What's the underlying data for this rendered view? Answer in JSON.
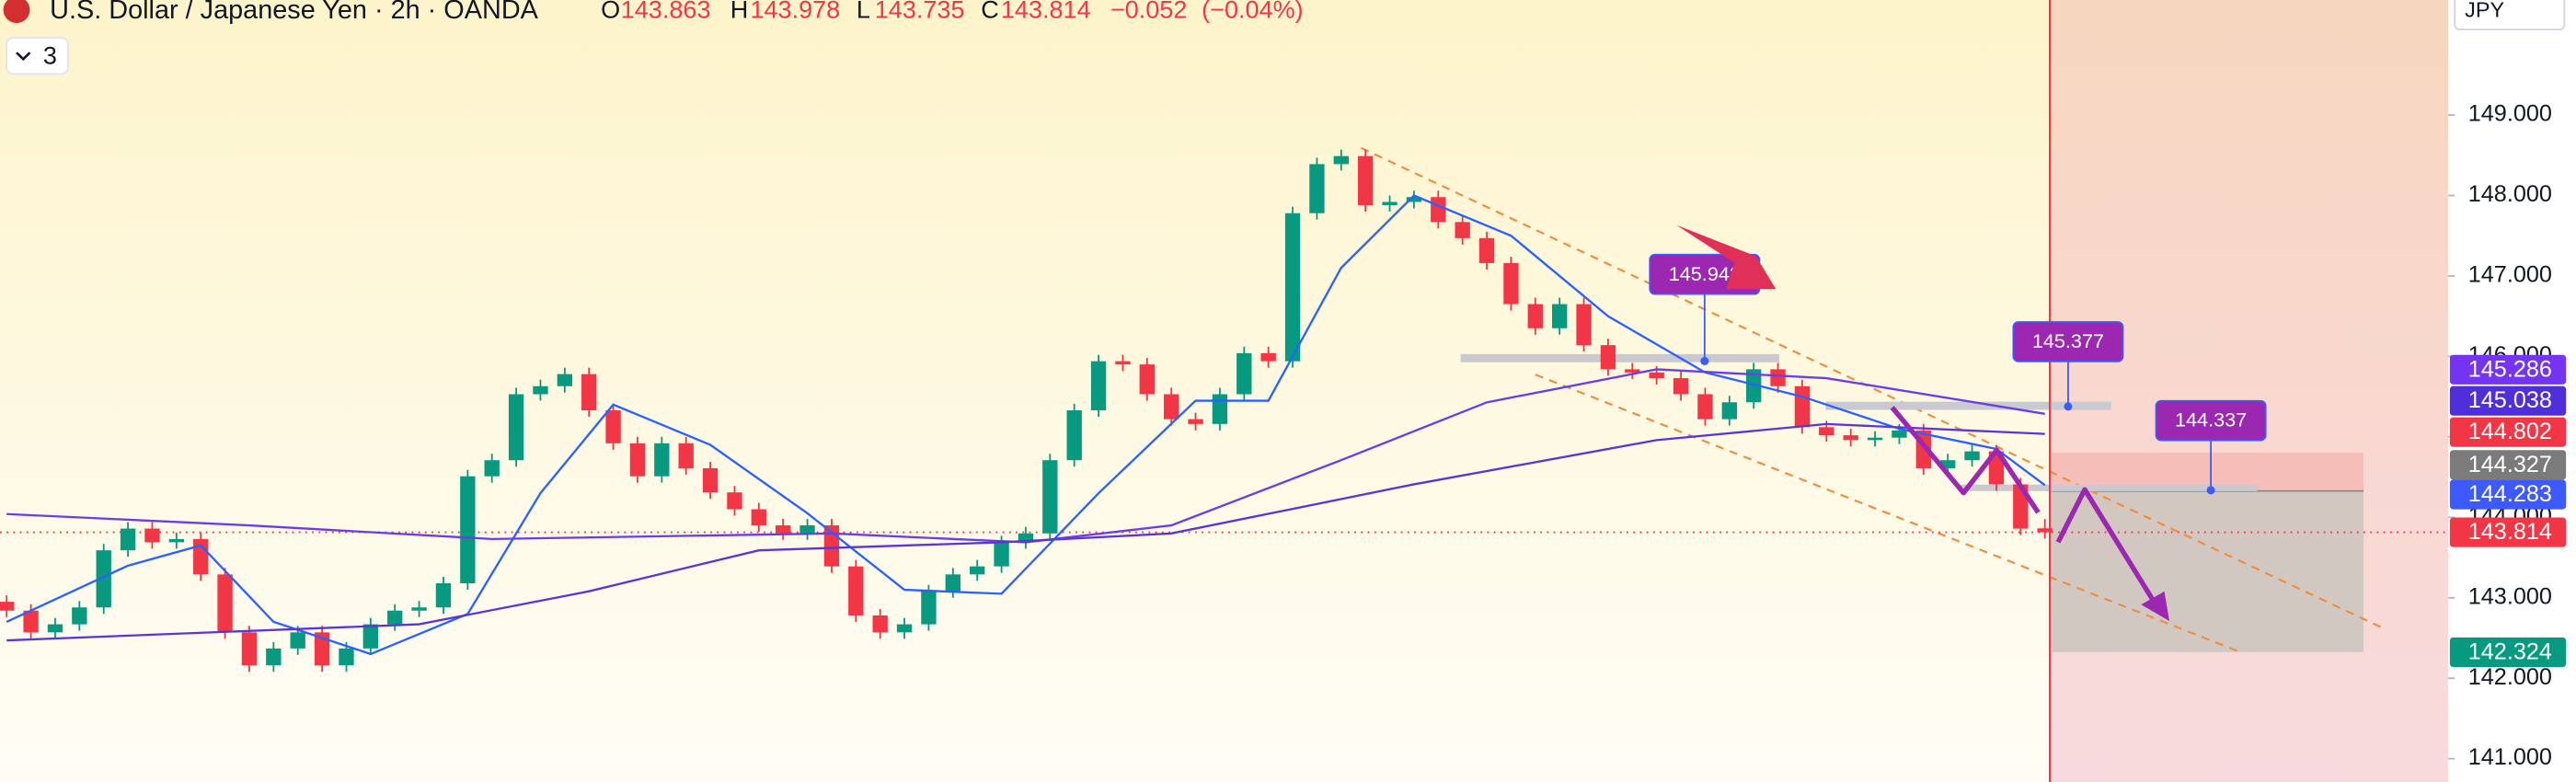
{
  "chart_data": {
    "type": "candlestick",
    "title": "U.S. Dollar / Japanese Yen · 2h · OANDA",
    "ohlc_header": [
      {
        "name": "O",
        "value": {
          "value": 143.863,
          "label": "143.863"
        }
      },
      {
        "name": "H",
        "value": {
          "value": 143.978,
          "label": "143.978"
        }
      },
      {
        "name": "L",
        "value": {
          "value": 143.735,
          "label": "143.735"
        }
      },
      {
        "name": "C",
        "value": {
          "value": 143.814,
          "label": "143.814"
        }
      }
    ],
    "change": {
      "value": -0.052,
      "label": "−0.052"
    },
    "change_pct": {
      "value": -0.04,
      "label": "(−0.04%)"
    },
    "indicator_count": 3,
    "currency": "JPY",
    "up_color": "#089981",
    "down_color": "#f23645",
    "candles": [
      [
        142.95,
        143.03,
        142.76,
        142.84
      ],
      [
        142.84,
        142.92,
        142.49,
        142.57
      ],
      [
        142.57,
        142.75,
        142.49,
        142.67
      ],
      [
        142.67,
        142.96,
        142.59,
        142.88
      ],
      [
        142.88,
        143.67,
        142.8,
        143.59
      ],
      [
        143.59,
        143.94,
        143.51,
        143.86
      ],
      [
        143.86,
        143.94,
        143.61,
        143.69
      ],
      [
        143.69,
        143.81,
        143.61,
        143.73
      ],
      [
        143.73,
        143.81,
        143.21,
        143.29
      ],
      [
        143.29,
        143.37,
        142.49,
        142.57
      ],
      [
        142.57,
        142.65,
        142.08,
        142.16
      ],
      [
        142.16,
        142.45,
        142.08,
        142.37
      ],
      [
        142.37,
        142.65,
        142.29,
        142.57
      ],
      [
        142.57,
        142.65,
        142.08,
        142.16
      ],
      [
        142.16,
        142.45,
        142.08,
        142.37
      ],
      [
        142.37,
        142.75,
        142.29,
        142.67
      ],
      [
        142.67,
        142.92,
        142.59,
        142.84
      ],
      [
        142.84,
        142.96,
        142.76,
        142.88
      ],
      [
        142.88,
        143.26,
        142.8,
        143.18
      ],
      [
        143.18,
        144.59,
        143.1,
        144.51
      ],
      [
        144.51,
        144.79,
        144.43,
        144.71
      ],
      [
        144.71,
        145.61,
        144.63,
        145.53
      ],
      [
        145.53,
        145.71,
        145.45,
        145.63
      ],
      [
        145.63,
        145.86,
        145.55,
        145.78
      ],
      [
        145.78,
        145.86,
        145.25,
        145.33
      ],
      [
        145.33,
        145.41,
        144.84,
        144.92
      ],
      [
        144.92,
        145.0,
        144.43,
        144.51
      ],
      [
        144.51,
        145.0,
        144.43,
        144.92
      ],
      [
        144.92,
        145.0,
        144.53,
        144.61
      ],
      [
        144.61,
        144.69,
        144.23,
        144.31
      ],
      [
        144.31,
        144.39,
        144.02,
        144.1
      ],
      [
        144.1,
        144.18,
        143.82,
        143.9
      ],
      [
        143.9,
        143.98,
        143.72,
        143.8
      ],
      [
        143.8,
        143.98,
        143.72,
        143.9
      ],
      [
        143.9,
        143.98,
        143.31,
        143.39
      ],
      [
        143.39,
        143.47,
        142.7,
        142.78
      ],
      [
        142.78,
        142.86,
        142.49,
        142.57
      ],
      [
        142.57,
        142.75,
        142.49,
        142.67
      ],
      [
        142.67,
        143.16,
        142.59,
        143.08
      ],
      [
        143.08,
        143.37,
        143.0,
        143.29
      ],
      [
        143.29,
        143.47,
        143.21,
        143.39
      ],
      [
        143.39,
        143.77,
        143.31,
        143.69
      ],
      [
        143.69,
        143.88,
        143.61,
        143.8
      ],
      [
        143.8,
        144.79,
        143.72,
        144.71
      ],
      [
        144.71,
        145.41,
        144.63,
        145.33
      ],
      [
        145.33,
        146.02,
        145.25,
        145.94
      ],
      [
        145.94,
        146.02,
        145.82,
        145.9
      ],
      [
        145.9,
        145.98,
        145.45,
        145.53
      ],
      [
        145.53,
        145.61,
        145.14,
        145.22
      ],
      [
        145.22,
        145.3,
        145.08,
        145.16
      ],
      [
        145.16,
        145.61,
        145.08,
        145.53
      ],
      [
        145.53,
        146.12,
        145.45,
        146.04
      ],
      [
        146.04,
        146.12,
        145.86,
        145.94
      ],
      [
        145.94,
        147.86,
        145.86,
        147.78
      ],
      [
        147.78,
        148.47,
        147.7,
        148.39
      ],
      [
        148.39,
        148.57,
        148.31,
        148.49
      ],
      [
        148.49,
        148.57,
        147.8,
        147.88
      ],
      [
        147.88,
        148.0,
        147.8,
        147.92
      ],
      [
        147.92,
        148.06,
        147.84,
        147.98
      ],
      [
        147.98,
        148.06,
        147.59,
        147.67
      ],
      [
        147.67,
        147.75,
        147.39,
        147.47
      ],
      [
        147.47,
        147.55,
        147.08,
        147.16
      ],
      [
        147.16,
        147.24,
        146.57,
        146.65
      ],
      [
        146.65,
        146.73,
        146.27,
        146.35
      ],
      [
        146.35,
        146.73,
        146.27,
        146.65
      ],
      [
        146.65,
        146.73,
        146.06,
        146.14
      ],
      [
        146.14,
        146.22,
        145.76,
        145.84
      ],
      [
        145.84,
        145.92,
        145.72,
        145.8
      ],
      [
        145.8,
        145.88,
        145.65,
        145.73
      ],
      [
        145.73,
        145.81,
        145.45,
        145.53
      ],
      [
        145.53,
        145.61,
        145.14,
        145.22
      ],
      [
        145.22,
        145.51,
        145.14,
        145.43
      ],
      [
        145.43,
        145.92,
        145.35,
        145.84
      ],
      [
        145.84,
        145.92,
        145.55,
        145.63
      ],
      [
        145.63,
        145.71,
        145.04,
        145.12
      ],
      [
        145.12,
        145.2,
        144.94,
        145.02
      ],
      [
        145.02,
        145.1,
        144.88,
        144.96
      ],
      [
        144.96,
        145.07,
        144.88,
        144.99
      ],
      [
        144.99,
        145.16,
        144.91,
        145.08
      ],
      [
        145.08,
        145.16,
        144.53,
        144.61
      ],
      [
        144.61,
        144.79,
        144.53,
        144.71
      ],
      [
        144.71,
        144.9,
        144.63,
        144.82
      ],
      [
        144.82,
        144.9,
        144.33,
        144.41
      ],
      [
        144.41,
        144.49,
        143.78,
        143.86
      ],
      [
        143.863,
        143.978,
        143.735,
        143.814
      ]
    ],
    "moving_averages": [
      {
        "color": "#2962ff",
        "x": [
          0,
          5,
          8,
          11,
          15,
          19,
          22,
          25,
          29,
          33,
          37,
          41,
          45,
          49,
          52,
          55,
          58,
          62,
          66,
          70,
          74,
          78,
          82,
          84
        ],
        "values": [
          142.7,
          143.4,
          143.65,
          142.7,
          142.3,
          142.8,
          144.3,
          145.4,
          144.9,
          144.05,
          143.1,
          143.05,
          144.3,
          145.45,
          145.45,
          147.1,
          148.0,
          147.5,
          146.5,
          145.8,
          145.5,
          145.1,
          144.85,
          144.4
        ]
      },
      {
        "color": "#6a3de8",
        "x": [
          0,
          10,
          20,
          34,
          42,
          48,
          55,
          61,
          68,
          75,
          84
        ],
        "values": [
          144.04,
          143.9,
          143.73,
          143.8,
          143.69,
          143.9,
          144.71,
          145.43,
          145.84,
          145.73,
          145.286
        ]
      },
      {
        "color": "#5b35d5",
        "x": [
          0,
          17,
          24,
          31,
          41,
          48,
          58,
          68,
          75,
          84
        ],
        "values": [
          142.47,
          142.67,
          143.08,
          143.59,
          143.69,
          143.8,
          144.41,
          144.96,
          145.16,
          145.038
        ]
      }
    ],
    "ylim": [
      140.71,
      150.43
    ],
    "yticks": [
      {
        "value": 141,
        "label": "141.000"
      },
      {
        "value": 142,
        "label": "142.000"
      },
      {
        "value": 143,
        "label": "143.000"
      },
      {
        "value": 144,
        "label": "144.000"
      },
      {
        "value": 145,
        "label": "145.000"
      },
      {
        "value": 146,
        "label": "146.000"
      },
      {
        "value": 147,
        "label": "147.000"
      },
      {
        "value": 148,
        "label": "148.000"
      },
      {
        "value": 149,
        "label": "149.000"
      }
    ],
    "price_tags": [
      {
        "value": 145.286,
        "label": "145.286",
        "color": "#7434f0"
      },
      {
        "value": 145.038,
        "label": "145.038",
        "color": "#4f2fd9"
      },
      {
        "value": 144.802,
        "label": "144.802",
        "color": "#f23645"
      },
      {
        "value": 144.327,
        "label": "144.327",
        "color": "#7b7b7b"
      },
      {
        "value": 144.283,
        "label": "144.283",
        "color": "#3d5afe"
      },
      {
        "value": 143.814,
        "label": "143.814",
        "color": "#f23645"
      },
      {
        "value": 142.324,
        "label": "142.324",
        "color": "#089981"
      }
    ],
    "callouts": [
      {
        "value": 145.942,
        "label": "145.942",
        "color": "#9c27b0"
      },
      {
        "value": 145.377,
        "label": "145.377",
        "color": "#9c27b0"
      },
      {
        "value": 144.337,
        "label": "144.337",
        "color": "#9c27b0"
      }
    ]
  }
}
